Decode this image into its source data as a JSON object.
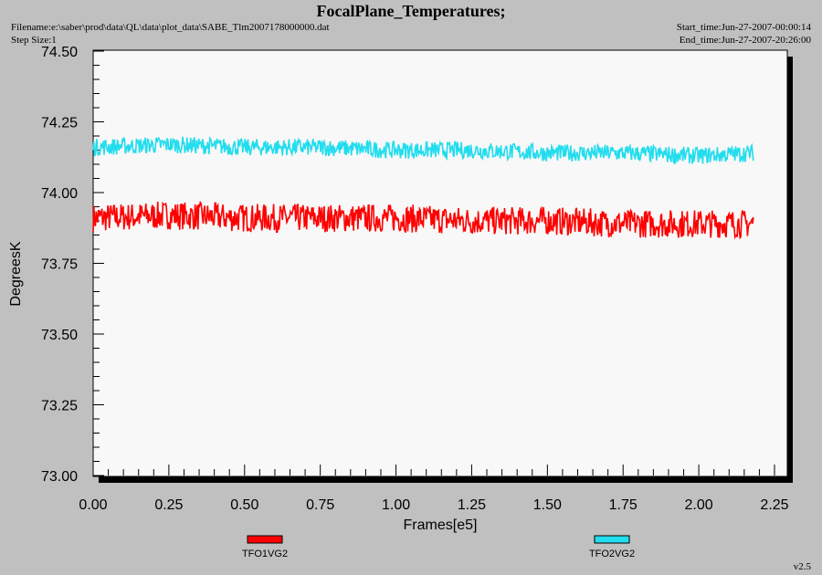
{
  "header": {
    "title": "FocalPlane_Temperatures;",
    "filename": "Filename:e:\\saber\\prod\\data\\QL\\data\\plot_data\\SABE_Tlm2007178000000.dat",
    "step_size": "Step Size:1",
    "start_time": "Start_time:Jun-27-2007-00:00:14",
    "end_time": "End_time:Jun-27-2007-20:26:00"
  },
  "footer": {
    "version": "v2.5"
  },
  "colors": {
    "background": "#c0c0c0",
    "plot_bg": "#f8f8f8",
    "series1": "#ff0000",
    "series2": "#22ddee"
  },
  "chart_data": {
    "type": "line",
    "xlabel": "Frames[e5]",
    "ylabel": "DegreesK",
    "xlim": [
      0,
      2.25
    ],
    "ylim": [
      73.0,
      74.5
    ],
    "xticks": [
      "0.00",
      "0.25",
      "0.50",
      "0.75",
      "1.00",
      "1.25",
      "1.50",
      "1.75",
      "2.00",
      "2.25"
    ],
    "yticks": [
      "73.00",
      "73.25",
      "73.50",
      "73.75",
      "74.00",
      "74.25",
      "74.50"
    ],
    "x_data_max": 2.18,
    "legend_position": "bottom",
    "series": [
      {
        "name": "TFO1VG2",
        "color": "#ff0000",
        "x": [
          0,
          0.25,
          0.5,
          0.75,
          1.0,
          1.25,
          1.5,
          1.75,
          2.0,
          2.18
        ],
        "center": [
          73.91,
          73.92,
          73.91,
          73.91,
          73.91,
          73.9,
          73.9,
          73.89,
          73.89,
          73.89
        ],
        "half_range": 0.05
      },
      {
        "name": "TFO2VG2",
        "color": "#22ddee",
        "x": [
          0,
          0.25,
          0.5,
          0.75,
          1.0,
          1.25,
          1.5,
          1.75,
          2.0,
          2.18
        ],
        "center": [
          74.16,
          74.17,
          74.16,
          74.16,
          74.15,
          74.15,
          74.14,
          74.14,
          74.13,
          74.14
        ],
        "half_range": 0.03
      }
    ]
  }
}
